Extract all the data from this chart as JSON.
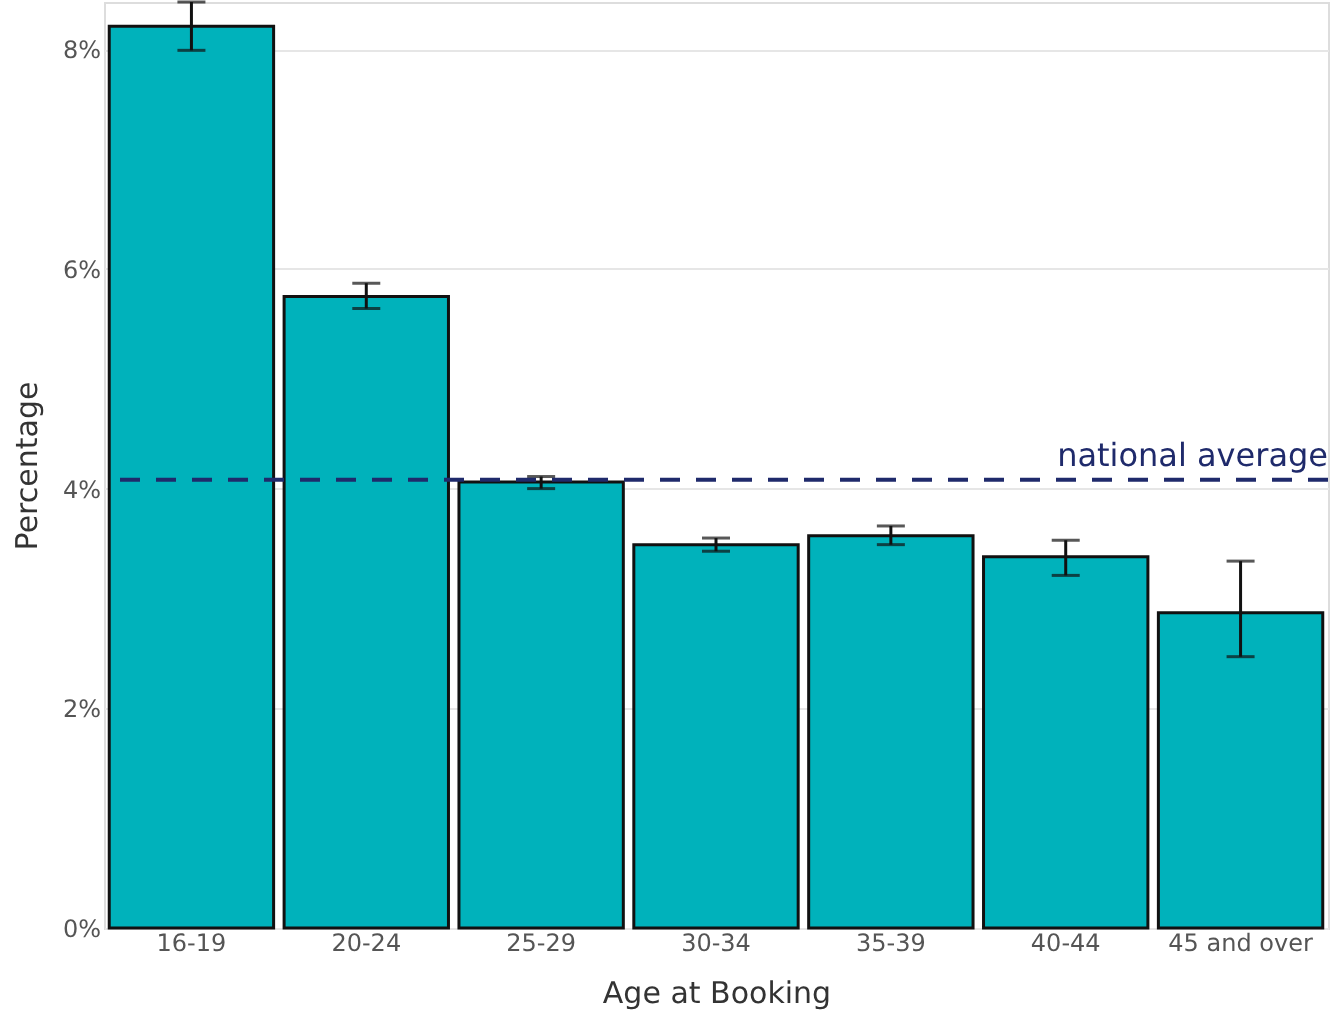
{
  "chart_data": {
    "type": "bar",
    "xlabel": "Age at Booking",
    "ylabel": "Percentage",
    "categories": [
      "16-19",
      "20-24",
      "25-29",
      "30-34",
      "35-39",
      "40-44",
      "45 and over"
    ],
    "values": [
      8.21,
      5.75,
      4.06,
      3.49,
      3.57,
      3.38,
      2.87
    ],
    "errors": [
      [
        7.99,
        8.43
      ],
      [
        5.64,
        5.87
      ],
      [
        4.0,
        4.11
      ],
      [
        3.43,
        3.55
      ],
      [
        3.49,
        3.66
      ],
      [
        3.21,
        3.53
      ],
      [
        2.47,
        3.34
      ]
    ],
    "color": "#00b2bb",
    "ylim": [
      0,
      8.43
    ],
    "yticks": [
      {
        "value": 0,
        "label": "0%"
      },
      {
        "value": 2,
        "label": "2%"
      },
      {
        "value": 4,
        "label": "4%"
      },
      {
        "value": 6,
        "label": "6%"
      },
      {
        "value": 8,
        "label": "8%"
      }
    ],
    "grid": "y",
    "ref_lines": [
      {
        "axis": "y",
        "value": 4.08,
        "label": "national average",
        "color": "#1f2a6b",
        "line_style": "dashed"
      }
    ]
  }
}
